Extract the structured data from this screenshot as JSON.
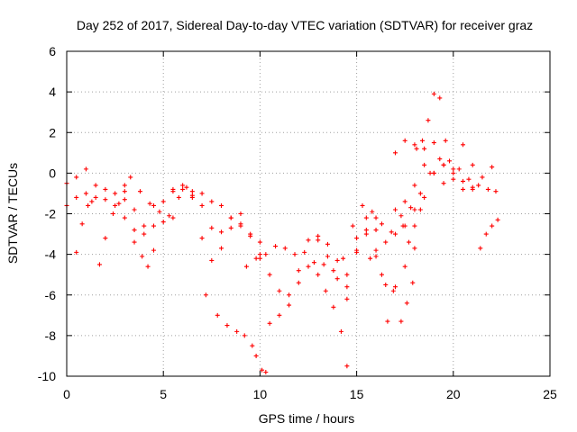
{
  "chart_data": {
    "type": "scatter",
    "title": "Day 252 of 2017, Sidereal Day-to-day VTEC variation (SDTVAR) for receiver graz",
    "xlabel": "GPS time / hours",
    "ylabel": "SDTVAR / TECUs",
    "xlim": [
      0,
      25
    ],
    "ylim": [
      -10,
      6
    ],
    "x_ticks": [
      "0",
      "5",
      "10",
      "15",
      "20",
      "25"
    ],
    "y_ticks": [
      "-10",
      "-8",
      "-6",
      "-4",
      "-2",
      "0",
      "2",
      "4",
      "6"
    ],
    "grid": true,
    "marker": "+",
    "color": "#ff0000",
    "series": [
      {
        "x": [
          0.0,
          0.5,
          1.0,
          1.5,
          2.0,
          2.5,
          3.0,
          3.5,
          4.0,
          4.5,
          5.0,
          5.5,
          6.0,
          6.5,
          7.0,
          7.5,
          8.0,
          8.5,
          9.0,
          9.5,
          10.0
        ],
        "y": [
          -0.5,
          -0.2,
          0.2,
          -0.6,
          -1.3,
          -1.6,
          -0.9,
          -1.8,
          -2.6,
          -1.6,
          -1.4,
          -0.9,
          -0.8,
          -1.1,
          -1.0,
          -1.4,
          -1.6,
          -2.2,
          -2.6,
          -3.0,
          -3.4
        ]
      },
      {
        "x": [
          0.0,
          0.5,
          1.0,
          1.5,
          2.0,
          2.5,
          3.0
        ],
        "y": [
          -1.6,
          -1.2,
          -1.0,
          -1.2,
          -0.8,
          -1.0,
          -0.6
        ]
      },
      {
        "x": [
          0.5,
          0.8,
          1.1,
          1.3
        ],
        "y": [
          -3.9,
          -2.5,
          -1.6,
          -1.4
        ]
      },
      {
        "x": [
          1.7,
          2.0,
          2.4,
          2.7,
          3.0
        ],
        "y": [
          -4.5,
          -3.2,
          -2.0,
          -1.5,
          -1.3
        ]
      },
      {
        "x": [
          3.3,
          3.8,
          4.3,
          4.8,
          5.3,
          5.8,
          6.2
        ],
        "y": [
          -0.2,
          -0.9,
          -1.5,
          -1.9,
          -2.1,
          -1.2,
          -0.7
        ]
      },
      {
        "x": [
          3.0,
          3.5,
          4.0,
          4.5,
          5.0,
          5.5
        ],
        "y": [
          -2.2,
          -3.4,
          -3.0,
          -2.6,
          -2.4,
          -2.2
        ]
      },
      {
        "x": [
          3.5,
          3.9,
          4.2,
          4.5
        ],
        "y": [
          -2.8,
          -4.1,
          -4.6,
          -3.8
        ]
      },
      {
        "x": [
          5.5,
          6.0,
          6.5,
          7.0,
          7.5,
          8.0,
          8.5,
          9.0
        ],
        "y": [
          -0.8,
          -0.6,
          -0.9,
          -1.6,
          -2.7,
          -2.9,
          -2.2,
          -2.0
        ]
      },
      {
        "x": [
          6.5,
          7.0,
          7.5,
          8.0,
          8.5,
          9.0,
          9.5,
          10.0
        ],
        "y": [
          -1.2,
          -3.2,
          -4.3,
          -3.7,
          -2.7,
          -2.5,
          -3.1,
          -4.0
        ]
      },
      {
        "x": [
          7.2,
          7.8,
          8.3,
          8.8,
          9.2,
          9.6,
          9.8,
          10.1,
          10.3
        ],
        "y": [
          -6.0,
          -7.0,
          -7.5,
          -7.8,
          -8.0,
          -8.5,
          -9.0,
          -9.7,
          -9.8
        ]
      },
      {
        "x": [
          9.3,
          9.8,
          10.3,
          10.8,
          11.3,
          11.8,
          12.3,
          12.8,
          13.3,
          13.8,
          14.3,
          14.8,
          15.3,
          15.8,
          16.3,
          16.8,
          17.3,
          17.8,
          18.3,
          18.8,
          19.3,
          19.8,
          20.3,
          20.8,
          21.3,
          21.8,
          22.2
        ],
        "y": [
          -4.6,
          -4.2,
          -4.0,
          -3.6,
          -3.7,
          -4.0,
          -3.9,
          -4.4,
          -4.5,
          -4.8,
          -4.2,
          -2.6,
          -1.6,
          -1.9,
          -2.5,
          -2.9,
          -2.1,
          -1.7,
          -1.0,
          0.0,
          0.7,
          0.6,
          0.2,
          -0.3,
          -0.6,
          -0.8,
          -0.9
        ]
      },
      {
        "x": [
          10.0,
          10.5,
          11.0,
          11.5,
          12.0,
          12.5,
          13.0,
          13.5,
          14.0,
          14.5,
          15.0,
          15.5,
          16.0
        ],
        "y": [
          -4.2,
          -5.0,
          -5.8,
          -6.5,
          -5.4,
          -4.6,
          -3.3,
          -4.1,
          -5.2,
          -5.6,
          -3.8,
          -3.0,
          -2.2
        ]
      },
      {
        "x": [
          10.5,
          11.0,
          11.5,
          12.0,
          12.5,
          13.0,
          13.5,
          14.0,
          14.5,
          15.0
        ],
        "y": [
          -7.4,
          -7.0,
          -6.0,
          -4.8,
          -3.3,
          -3.1,
          -3.5,
          -4.3,
          -5.0,
          -3.9
        ]
      },
      {
        "x": [
          13.0,
          13.4,
          13.8,
          14.2,
          14.5
        ],
        "y": [
          -5.0,
          -5.8,
          -6.6,
          -7.8,
          -9.5
        ]
      },
      {
        "x": [
          14.5,
          15.0,
          15.5,
          16.0,
          16.5,
          17.0,
          17.5,
          18.0,
          18.5,
          19.0,
          19.5,
          20.0,
          20.5,
          21.0
        ],
        "y": [
          -6.2,
          -3.2,
          -2.2,
          -2.8,
          -3.4,
          -3.0,
          -2.6,
          -1.8,
          -1.2,
          0.0,
          0.4,
          0.0,
          -0.4,
          -0.7
        ]
      },
      {
        "x": [
          15.5,
          16.0,
          16.5,
          17.0,
          17.5,
          18.0
        ],
        "y": [
          -2.8,
          -4.1,
          -5.5,
          -5.6,
          -4.6,
          -3.7
        ]
      },
      {
        "x": [
          15.7,
          16.0,
          16.3,
          16.6,
          16.9
        ],
        "y": [
          -4.2,
          -3.8,
          -5.0,
          -7.3,
          -5.8
        ]
      },
      {
        "x": [
          17.3,
          17.6,
          17.9
        ],
        "y": [
          -7.3,
          -6.4,
          -5.4
        ]
      },
      {
        "x": [
          18.1,
          18.4,
          18.7,
          19.0,
          19.3,
          19.6
        ],
        "y": [
          1.2,
          1.6,
          2.6,
          3.9,
          3.7,
          1.6
        ]
      },
      {
        "x": [
          17.0,
          17.5,
          18.0,
          18.5,
          19.0,
          19.5,
          20.0,
          20.5,
          21.0,
          21.5,
          22.0
        ],
        "y": [
          1.0,
          1.6,
          1.4,
          0.4,
          0.0,
          -0.5,
          0.2,
          1.4,
          0.4,
          -0.2,
          0.3
        ]
      },
      {
        "x": [
          17.0,
          17.5,
          18.0,
          18.5,
          19.0,
          19.5,
          20.0,
          20.5,
          21.0
        ],
        "y": [
          -1.8,
          -1.4,
          -0.6,
          1.2,
          1.5,
          0.4,
          -0.3,
          -0.8,
          -0.8
        ]
      },
      {
        "x": [
          21.4,
          21.7,
          22.0,
          22.3
        ],
        "y": [
          -3.7,
          -3.0,
          -2.6,
          -2.3
        ]
      },
      {
        "x": [
          17.4,
          17.7,
          18.0,
          18.3
        ],
        "y": [
          -2.6,
          -3.4,
          -2.6,
          -1.8
        ]
      }
    ]
  }
}
